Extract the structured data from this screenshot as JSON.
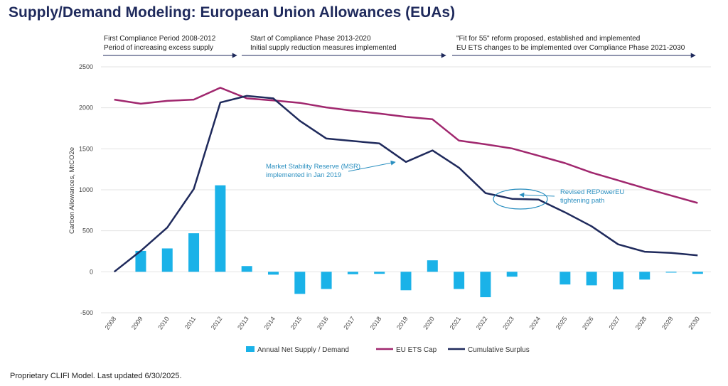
{
  "title": "Supply/Demand Modeling: European Union Allowances (EUAs)",
  "phases": [
    {
      "line1": "First Compliance Period 2008-2012",
      "line2": "Period of increasing excess supply"
    },
    {
      "line1": "Start of Compliance Phase 2013-2020",
      "line2": "Initial supply reduction measures implemented"
    },
    {
      "line1": "\"Fit for 55\" reform proposed, established and implemented",
      "line2": "EU ETS changes to be implemented over Compliance Phase 2021-2030"
    }
  ],
  "footer": "Proprietary CLIFI Model. Last updated 6/30/2025.",
  "colors": {
    "bars": "#1ab2e8",
    "cap": "#a0276e",
    "surplus": "#1f2a5c",
    "annotation": "#2a8fc0"
  },
  "chart_data": {
    "type": "bar",
    "categories": [
      "2008",
      "2009",
      "2010",
      "2011",
      "2012",
      "2013",
      "2014",
      "2015",
      "2016",
      "2017",
      "2018",
      "2019",
      "2020",
      "2021",
      "2022",
      "2023",
      "2024",
      "2025",
      "2026",
      "2027",
      "2028",
      "2029",
      "2030"
    ],
    "ylabel": "Carbon Allowances, MtCO2e",
    "xlabel": "",
    "ylim": [
      -500,
      2500
    ],
    "yticks": [
      -500,
      0,
      500,
      1000,
      1500,
      2000,
      2500
    ],
    "grid": true,
    "legend_placement": "bottom",
    "series": [
      {
        "name": "Annual Net Supply / Demand",
        "type": "bar",
        "values": [
          0,
          255,
          285,
          470,
          1055,
          70,
          -35,
          -270,
          -210,
          -30,
          -25,
          -225,
          140,
          -210,
          -310,
          -60,
          0,
          -155,
          -165,
          -215,
          -95,
          -10,
          -25
        ]
      },
      {
        "name": "EU ETS Cap",
        "type": "line",
        "values": [
          2100,
          2050,
          2085,
          2100,
          2245,
          2115,
          2090,
          2060,
          2005,
          1965,
          1930,
          1890,
          1860,
          1600,
          1555,
          1505,
          1415,
          1325,
          1210,
          1115,
          1020,
          930,
          840
        ]
      },
      {
        "name": "Cumulative Surplus",
        "type": "line",
        "values": [
          0,
          255,
          540,
          1010,
          2065,
          2145,
          2115,
          1840,
          1625,
          1595,
          1565,
          1340,
          1480,
          1270,
          960,
          890,
          880,
          725,
          555,
          335,
          245,
          230,
          200
        ]
      }
    ],
    "annotations": [
      {
        "text1": "Market Stability Reserve (MSR)",
        "text2": "implemented in Jan 2019"
      },
      {
        "text1": "Revised REPowerEU",
        "text2": "tightening path"
      }
    ]
  }
}
